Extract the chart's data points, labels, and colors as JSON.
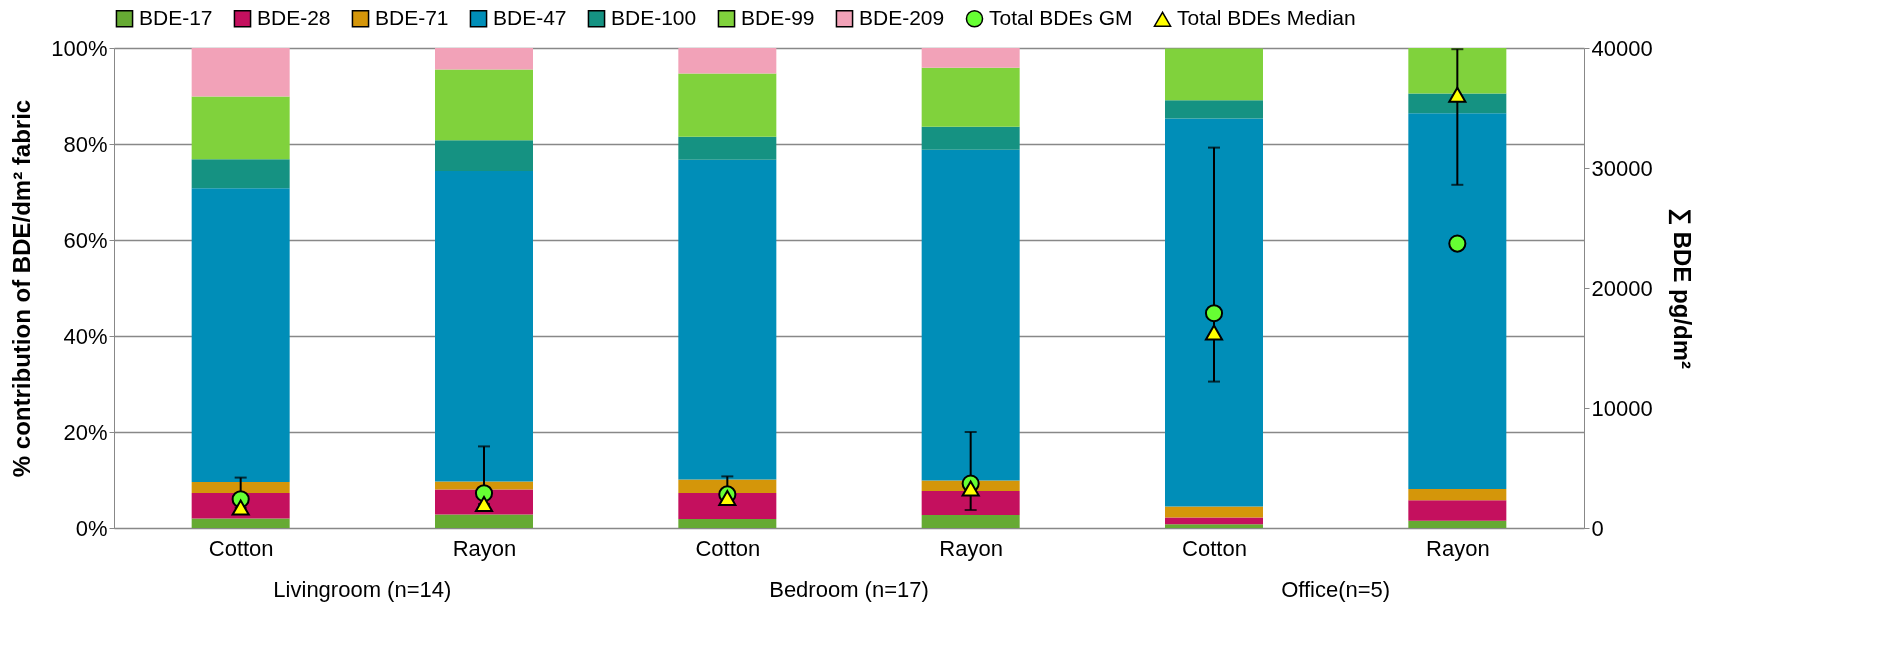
{
  "chart_data": {
    "type": "bar",
    "stacked": true,
    "legend": "top",
    "grid": "y",
    "categories": [
      "Cotton",
      "Rayon",
      "Cotton",
      "Rayon",
      "Cotton",
      "Rayon"
    ],
    "annotations": [
      "Livingroom (n=14)",
      "Bedroom (n=17)",
      "Office(n=5)"
    ],
    "ylabel": "% contribution of BDE/dm² fabric",
    "y2label": "∑ BDE pg/dm²",
    "ylim": [
      0,
      100
    ],
    "yticks": [
      {
        "value": 0,
        "label": "0%"
      },
      {
        "value": 20,
        "label": "20%"
      },
      {
        "value": 40,
        "label": "40%"
      },
      {
        "value": 60,
        "label": "60%"
      },
      {
        "value": 80,
        "label": "80%"
      },
      {
        "value": 100,
        "label": "100%"
      }
    ],
    "y2lim": [
      0,
      40000
    ],
    "y2ticks": [
      0,
      10000,
      20000,
      30000,
      40000
    ],
    "series": [
      {
        "name": "BDE-17",
        "color": "#66aa33",
        "values": [
          2.0,
          2.8,
          1.9,
          2.7,
          0.8,
          1.5
        ]
      },
      {
        "name": "BDE-28",
        "color": "#c4105e",
        "values": [
          5.3,
          5.2,
          5.4,
          5.0,
          1.4,
          4.3
        ]
      },
      {
        "name": "BDE-71",
        "color": "#d4960a",
        "values": [
          2.3,
          1.7,
          2.8,
          2.2,
          2.3,
          2.3
        ]
      },
      {
        "name": "BDE-47",
        "color": "#008eb8",
        "values": [
          61.2,
          64.7,
          66.6,
          68.9,
          80.8,
          78.3
        ]
      },
      {
        "name": "BDE-100",
        "color": "#159282",
        "values": [
          6.0,
          6.4,
          4.8,
          4.8,
          3.8,
          4.1
        ]
      },
      {
        "name": "BDE-99",
        "color": "#80d23c",
        "values": [
          13.1,
          14.7,
          13.2,
          12.3,
          10.8,
          9.5
        ]
      },
      {
        "name": "BDE-209",
        "color": "#f2a2b8",
        "values": [
          10.1,
          4.5,
          5.3,
          4.1,
          null,
          null
        ]
      },
      {
        "name": "Total BDEs GM",
        "type": "scatter",
        "axis": "y2",
        "marker": "circle",
        "color": "#66ff33",
        "values": [
          2400,
          2900,
          2800,
          3700,
          17900,
          23700
        ]
      },
      {
        "name": "Total BDEs Median",
        "type": "scatter",
        "axis": "y2",
        "marker": "triangle",
        "color": "#ffff00",
        "values": [
          1700,
          2000,
          2500,
          3300,
          16300,
          36100
        ],
        "errors": [
          [
            1700,
            4200
          ],
          [
            2000,
            6800
          ],
          [
            2500,
            4300
          ],
          [
            1500,
            8000
          ],
          [
            12200,
            31700
          ],
          [
            28600,
            39900
          ]
        ]
      }
    ]
  }
}
